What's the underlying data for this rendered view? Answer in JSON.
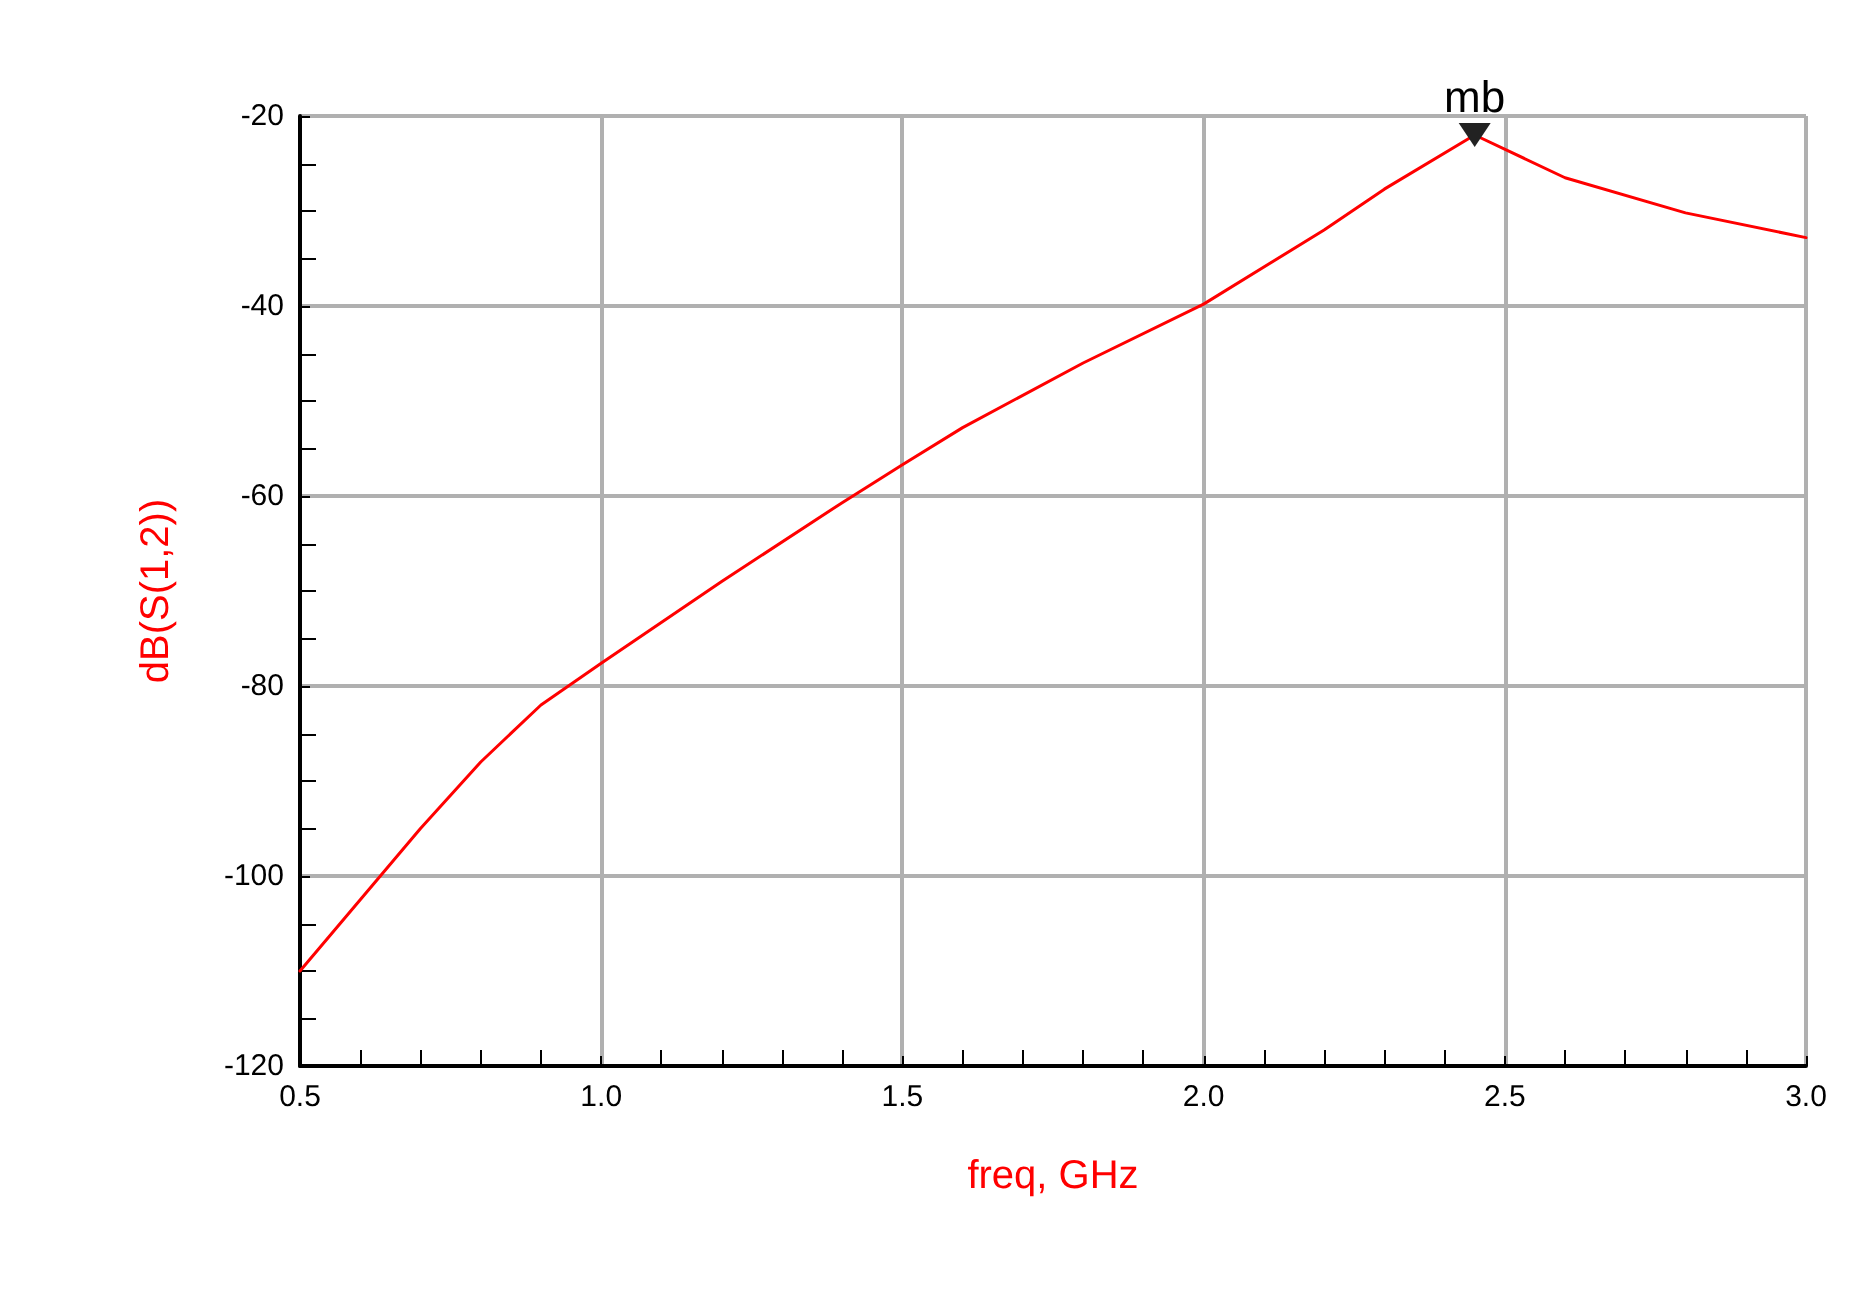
{
  "chart_data": {
    "type": "line",
    "xlabel": "freq, GHz",
    "ylabel": "dB(S(1,2))",
    "x": [
      0.5,
      0.6,
      0.7,
      0.8,
      0.9,
      1.0,
      1.2,
      1.4,
      1.5,
      1.6,
      1.8,
      2.0,
      2.2,
      2.3,
      2.45,
      2.6,
      2.8,
      3.0
    ],
    "series": [
      {
        "color": "#ff0000",
        "values": [
          -110,
          -102.5,
          -95,
          -88,
          -82,
          -77.6,
          -69,
          -60.7,
          -56.7,
          -52.8,
          -46,
          -39.8,
          -32,
          -27.7,
          -22,
          -26.5,
          -30.2,
          -32.8
        ]
      }
    ],
    "xlim": [
      0.5,
      3.0
    ],
    "xticks": [
      {
        "value": 0.5,
        "label": "0.5"
      },
      {
        "value": 1,
        "label": "1.0"
      },
      {
        "value": 1.5,
        "label": "1.5"
      },
      {
        "value": 2,
        "label": "2.0"
      },
      {
        "value": 2.5,
        "label": "2.5"
      },
      {
        "value": 3,
        "label": "3.0"
      }
    ],
    "ylim": [
      -120,
      -20
    ],
    "yticks": [
      -120,
      -100,
      -80,
      -60,
      -40,
      -20
    ],
    "grid": true,
    "marker": "none",
    "line_style": "solid",
    "annotations": [
      {
        "text": "mb",
        "x": 2.45,
        "y": -22
      }
    ]
  }
}
